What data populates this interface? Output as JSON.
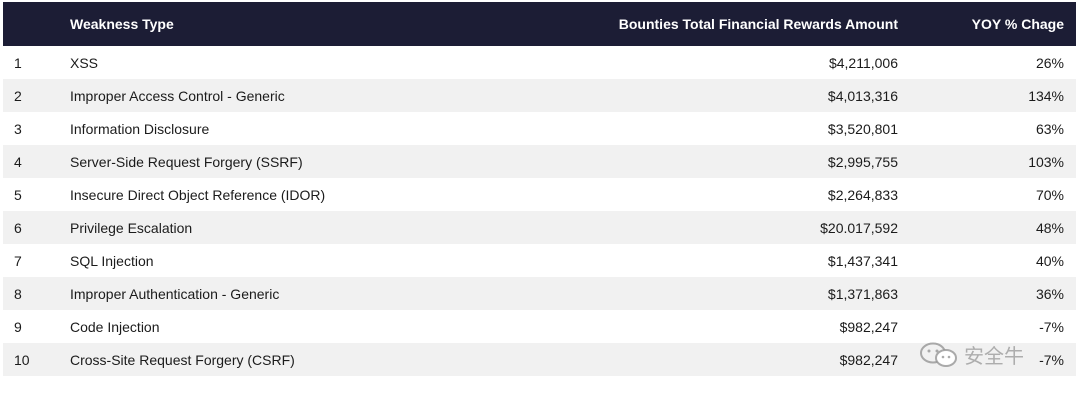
{
  "table": {
    "headers": {
      "rank": "",
      "type": "Weakness Type",
      "amount": "Bounties Total Financial Rewards Amount",
      "yoy": "YOY % Chage"
    },
    "rows": [
      {
        "rank": "1",
        "type": "XSS",
        "amount": "$4,211,006",
        "yoy": "26%"
      },
      {
        "rank": "2",
        "type": "Improper Access Control - Generic",
        "amount": "$4,013,316",
        "yoy": "134%"
      },
      {
        "rank": "3",
        "type": "Information Disclosure",
        "amount": "$3,520,801",
        "yoy": "63%"
      },
      {
        "rank": "4",
        "type": "Server-Side Request Forgery (SSRF)",
        "amount": "$2,995,755",
        "yoy": "103%"
      },
      {
        "rank": "5",
        "type": "Insecure Direct Object Reference (IDOR)",
        "amount": "$2,264,833",
        "yoy": "70%"
      },
      {
        "rank": "6",
        "type": "Privilege Escalation",
        "amount": "$20.017,592",
        "yoy": "48%"
      },
      {
        "rank": "7",
        "type": "SQL Injection",
        "amount": "$1,437,341",
        "yoy": "40%"
      },
      {
        "rank": "8",
        "type": "Improper Authentication - Generic",
        "amount": "$1,371,863",
        "yoy": "36%"
      },
      {
        "rank": "9",
        "type": "Code Injection",
        "amount": "$982,247",
        "yoy": "-7%"
      },
      {
        "rank": "10",
        "type": "Cross-Site Request Forgery (CSRF)",
        "amount": "$982,247",
        "yoy": "-7%"
      }
    ]
  },
  "watermark": {
    "icon": "wechat-icon",
    "text": "安全牛"
  }
}
